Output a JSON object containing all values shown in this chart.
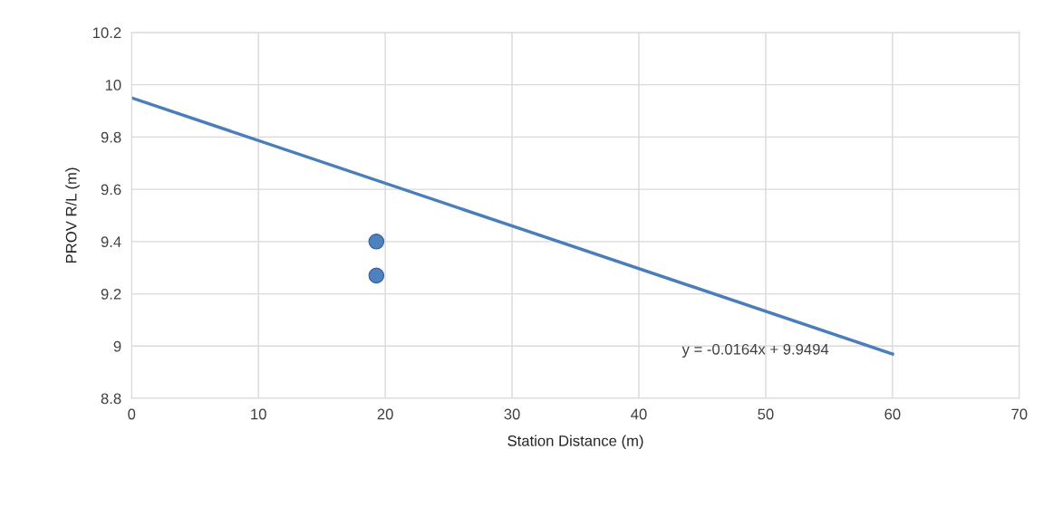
{
  "chart_data": {
    "type": "scatter",
    "xlabel": "Station Distance (m)",
    "ylabel": "PROV R/L (m)",
    "series": [
      {
        "color": "#4f81bd",
        "x": [
          19.3,
          19.3
        ],
        "values": [
          9.4,
          9.27
        ],
        "marker": "circle"
      },
      {
        "type": "line",
        "color": "#4a7ebb",
        "x": [
          0,
          60
        ],
        "values": [
          9.95,
          8.97
        ],
        "marker": "none"
      }
    ],
    "annotations": [
      "y = -0.0164x + 9.9494"
    ],
    "xlim": [
      0,
      70
    ],
    "xticks": [
      0,
      10,
      20,
      30,
      40,
      50,
      60,
      70
    ],
    "ylim": [
      8.8,
      10.2
    ],
    "yticks": [
      8.8,
      9,
      9.2,
      9.4,
      9.6,
      9.8,
      10,
      10.2
    ],
    "grid": true,
    "legend": false
  }
}
